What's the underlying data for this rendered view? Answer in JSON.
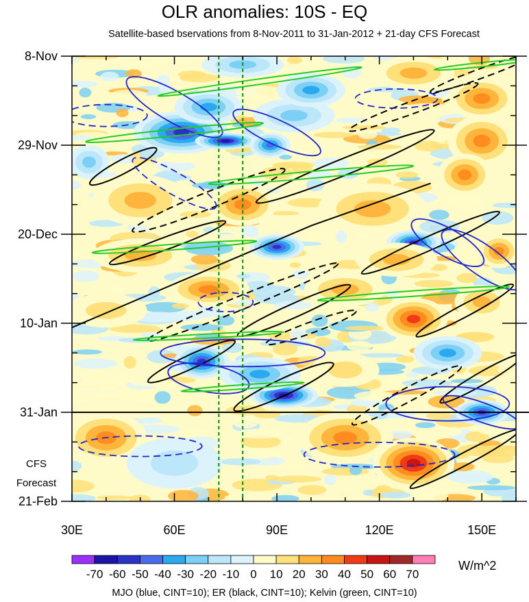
{
  "chart_data": {
    "type": "heatmap",
    "title": "OLR anomalies: 10S - EQ",
    "subtitle": "Satellite-based bservations from 8-Nov-2011 to 31-Jan-2012 + 21-day CFS Forecast",
    "x_ticks": [
      {
        "value": 30,
        "label": "30E"
      },
      {
        "value": 60,
        "label": "60E"
      },
      {
        "value": 90,
        "label": "90E"
      },
      {
        "value": 120,
        "label": "120E"
      },
      {
        "value": 150,
        "label": "150E"
      }
    ],
    "xlim": [
      30,
      160
    ],
    "y_ticks": [
      {
        "day": 0,
        "label": "8-Nov"
      },
      {
        "day": 21,
        "label": "29-Nov"
      },
      {
        "day": 42,
        "label": "20-Dec"
      },
      {
        "day": 63,
        "label": "10-Jan"
      },
      {
        "day": 84,
        "label": "31-Jan"
      },
      {
        "day": 105,
        "label": "21-Feb"
      }
    ],
    "ylim_days": [
      0,
      105
    ],
    "forecast_start_day": 84,
    "forecast_label": [
      "CFS",
      "Forecast"
    ],
    "colorbar": {
      "levels": [
        -70,
        -60,
        -50,
        -40,
        -30,
        -20,
        -10,
        0,
        10,
        20,
        30,
        40,
        50,
        60,
        70
      ],
      "labels": [
        "-70",
        "-60",
        "-50",
        "-40",
        "-30",
        "-20",
        "-10",
        "0",
        "10",
        "20",
        "30",
        "40",
        "50",
        "60",
        "70"
      ],
      "colors": [
        "#9b30ff",
        "#1a14a8",
        "#2a32c8",
        "#4a6ce8",
        "#2aa8f0",
        "#7dd0f5",
        "#bce6fa",
        "#ddf3fb",
        "#fffbc8",
        "#ffe07a",
        "#ffb43c",
        "#ff8c1e",
        "#f03c14",
        "#c81414",
        "#a02828",
        "#ff7eb4"
      ],
      "units": "W/m^2"
    },
    "reference_lines_lon": [
      73,
      80
    ],
    "contour_legend": "MJO (blue, CINT=10); ER (black, CINT=10); Kelvin (green, CINT=10)",
    "contour_colors": {
      "MJO": "#2222cc",
      "ER": "#000000",
      "Kelvin": "#22cc22"
    }
  }
}
